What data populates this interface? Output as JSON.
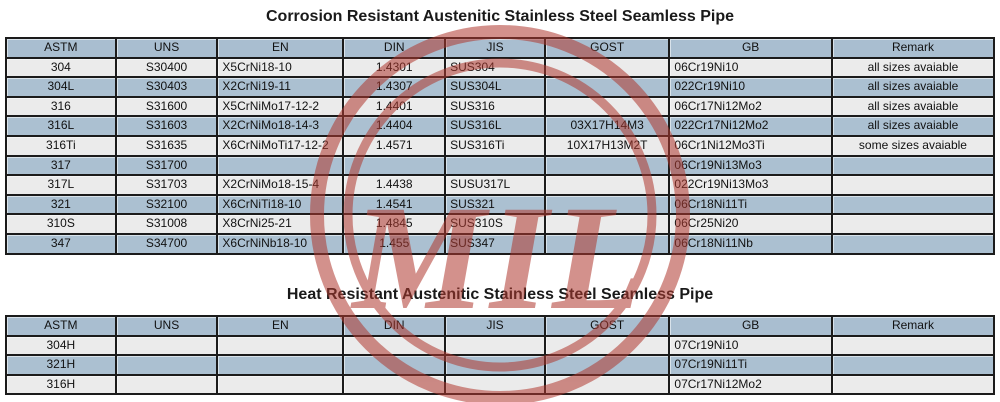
{
  "tables": [
    {
      "title": "Corrosion Resistant Austenitic Stainless Steel Seamless Pipe",
      "columns": [
        "ASTM",
        "UNS",
        "EN",
        "DIN",
        "JIS",
        "GOST",
        "GB",
        "Remark"
      ],
      "rows": [
        [
          "304",
          "S30400",
          "X5CrNi18-10",
          "1.4301",
          "SUS304",
          "",
          "06Cr19Ni10",
          "all sizes avaiable"
        ],
        [
          "304L",
          "S30403",
          "X2CrNi19-11",
          "1.4307",
          "SUS304L",
          "",
          "022Cr19Ni10",
          "all sizes avaiable"
        ],
        [
          "316",
          "S31600",
          "X5CrNiMo17-12-2",
          "1.4401",
          "SUS316",
          "",
          "06Cr17Ni12Mo2",
          "all sizes avaiable"
        ],
        [
          "316L",
          "S31603",
          "X2CrNiMo18-14-3",
          "1.4404",
          "SUS316L",
          "03X17H14M3",
          "022Cr17Ni12Mo2",
          "all sizes avaiable"
        ],
        [
          "316Ti",
          "S31635",
          "X6CrNiMoTi17-12-2",
          "1.4571",
          "SUS316Ti",
          "10X17H13M2T",
          "06Cr1Ni12Mo3Ti",
          "some sizes avaiable"
        ],
        [
          "317",
          "S31700",
          "",
          "",
          "",
          "",
          "06Cr19Ni13Mo3",
          ""
        ],
        [
          "317L",
          "S31703",
          "X2CrNiMo18-15-4",
          "1.4438",
          "SUSU317L",
          "",
          "022Cr19Ni13Mo3",
          ""
        ],
        [
          "321",
          "S32100",
          "X6CrNiTi18-10",
          "1.4541",
          "SUS321",
          "",
          "06Cr18Ni11Ti",
          ""
        ],
        [
          "310S",
          "S31008",
          "X8CrNi25-21",
          "1.4845",
          "SUS310S",
          "",
          "06Cr25Ni20",
          ""
        ],
        [
          "347",
          "S34700",
          "X6CrNiNb18-10",
          "1.455",
          "SUS347",
          "",
          "06Cr18Ni11Nb",
          ""
        ]
      ]
    },
    {
      "title": "Heat Resistant Austenitic Stainless Steel Seamless Pipe",
      "columns": [
        "ASTM",
        "UNS",
        "EN",
        "DIN",
        "JIS",
        "GOST",
        "GB",
        "Remark"
      ],
      "rows": [
        [
          "304H",
          "",
          "",
          "",
          "",
          "",
          "07Cr19Ni10",
          ""
        ],
        [
          "321H",
          "",
          "",
          "",
          "",
          "",
          "07Cr19Ni11Ti",
          ""
        ],
        [
          "316H",
          "",
          "",
          "",
          "",
          "",
          "07Cr17Ni12Mo2",
          ""
        ]
      ]
    }
  ],
  "watermark": {
    "text": "MIL",
    "color": "#b0392f",
    "opacity": "0.55"
  },
  "colors": {
    "header_bg": "#a9bed0",
    "row_blue": "#abc0d1",
    "row_light": "#ebebeb",
    "border": "#1b1b1b",
    "title_text": "#1a1a1a"
  },
  "column_widths_pct": [
    11.1,
    10.3,
    12.75,
    10.3,
    10.1,
    12.6,
    16.45,
    16.4
  ]
}
